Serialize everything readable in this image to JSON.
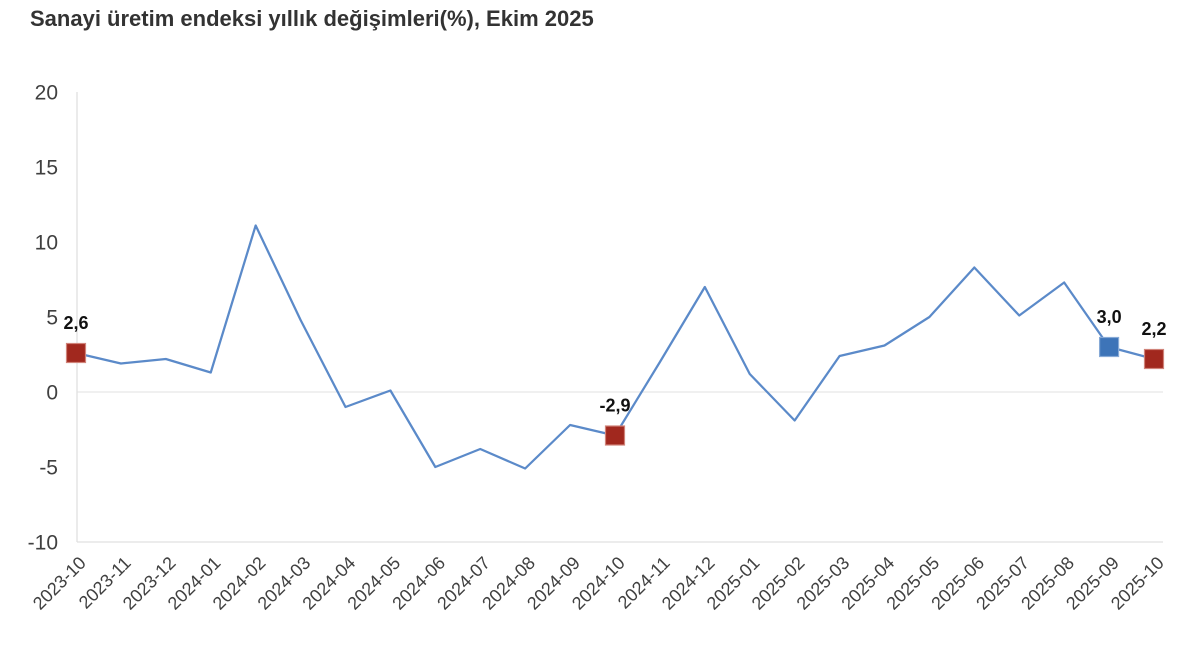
{
  "title": "Sanayi üretim endeksi yıllık değişimleri(%), Ekim 2025",
  "chart_data": {
    "type": "line",
    "title": "Sanayi üretim endeksi yıllık değişimleri(%), Ekim 2025",
    "x": [
      "2023-10",
      "2023-11",
      "2023-12",
      "2024-01",
      "2024-02",
      "2024-03",
      "2024-04",
      "2024-05",
      "2024-06",
      "2024-07",
      "2024-08",
      "2024-09",
      "2024-10",
      "2024-11",
      "2024-12",
      "2025-01",
      "2025-02",
      "2025-03",
      "2025-04",
      "2025-05",
      "2025-06",
      "2025-07",
      "2025-08",
      "2025-09",
      "2025-10"
    ],
    "values": [
      2.6,
      1.9,
      2.2,
      1.3,
      11.1,
      4.8,
      -1.0,
      0.1,
      -5.0,
      -3.8,
      -5.1,
      -2.2,
      -2.9,
      2.0,
      7.0,
      1.2,
      -1.9,
      2.4,
      3.1,
      5.0,
      8.3,
      5.1,
      7.3,
      3.0,
      2.2
    ],
    "ylim": [
      -10,
      20
    ],
    "yticks": [
      20,
      15,
      10,
      5,
      0,
      -5,
      -10
    ],
    "grid": "zero line only",
    "legend": "none",
    "line_color": "#5b8ac9",
    "axis_color": "#e0e0e0",
    "zero_line_color": "#e6e6e6",
    "tick_label_color": "#404040",
    "data_label_color": "#111111",
    "annotations": [
      {
        "x": "2023-10",
        "value": 2.6,
        "label": "2,6",
        "marker": "square",
        "marker_color": "#a1281e",
        "marker_border": "#d08379"
      },
      {
        "x": "2024-10",
        "value": -2.9,
        "label": "-2,9",
        "marker": "square",
        "marker_color": "#a1281e",
        "marker_border": "#d08379"
      },
      {
        "x": "2025-09",
        "value": 3.0,
        "label": "3,0",
        "marker": "square",
        "marker_color": "#3d74b8",
        "marker_border": "#86a9d6"
      },
      {
        "x": "2025-10",
        "value": 2.2,
        "label": "2,2",
        "marker": "square",
        "marker_color": "#a1281e",
        "marker_border": "#d08379"
      }
    ]
  }
}
